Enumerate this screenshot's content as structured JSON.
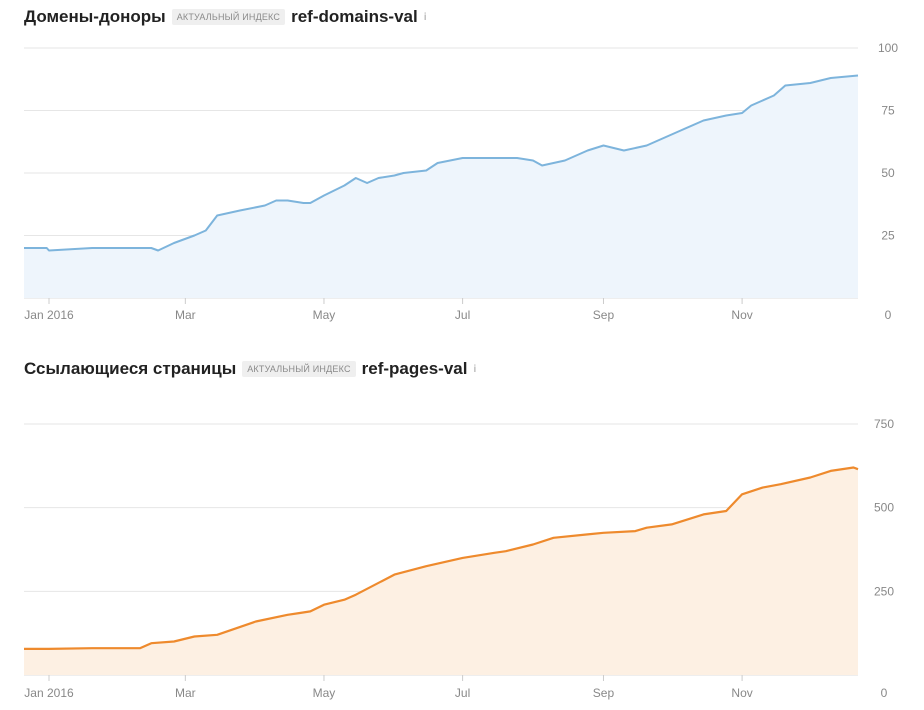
{
  "charts": [
    {
      "title": "Домены-доноры",
      "badge": "Актуальный индекс",
      "metric_key": "ref-domains-val",
      "info_icon": "i"
    },
    {
      "title": "Ссылающиеся страницы",
      "badge": "Актуальный индекс",
      "metric_key": "ref-pages-val",
      "info_icon": "i"
    }
  ],
  "colors": {
    "domains_line": "#7db4dc",
    "domains_fill": "#eef5fc",
    "pages_line": "#ee8a2d",
    "pages_fill": "#fdf0e3",
    "grid": "#e6e6e6",
    "tick_text": "#888888"
  },
  "chart_data": [
    {
      "type": "area",
      "title": "Домены-доноры",
      "x_tick_labels": [
        "Jan 2016",
        "Mar",
        "May",
        "Jul",
        "Sep",
        "Nov"
      ],
      "x_tick_dates": [
        "2016-01-01",
        "2016-03-01",
        "2016-05-01",
        "2016-07-01",
        "2016-09-01",
        "2016-11-01"
      ],
      "xlim": [
        "2015-12-21",
        "2016-12-22"
      ],
      "ylim": [
        0,
        100
      ],
      "y_ticks": [
        0,
        25,
        50,
        75,
        100
      ],
      "grid": true,
      "series": [
        {
          "x": [
            "2015-12-21",
            "2015-12-31",
            "2016-01-01",
            "2016-01-20",
            "2016-02-05",
            "2016-02-15",
            "2016-02-18",
            "2016-02-25",
            "2016-03-05",
            "2016-03-10",
            "2016-03-15",
            "2016-03-25",
            "2016-04-05",
            "2016-04-10",
            "2016-04-15",
            "2016-04-22",
            "2016-04-25",
            "2016-05-01",
            "2016-05-10",
            "2016-05-15",
            "2016-05-20",
            "2016-05-25",
            "2016-06-01",
            "2016-06-05",
            "2016-06-15",
            "2016-06-20",
            "2016-07-01",
            "2016-07-10",
            "2016-07-20",
            "2016-07-25",
            "2016-08-01",
            "2016-08-05",
            "2016-08-15",
            "2016-08-25",
            "2016-09-01",
            "2016-09-10",
            "2016-09-20",
            "2016-09-25",
            "2016-10-05",
            "2016-10-15",
            "2016-10-25",
            "2016-11-01",
            "2016-11-05",
            "2016-11-15",
            "2016-11-20",
            "2016-12-01",
            "2016-12-10",
            "2016-12-22"
          ],
          "y": [
            20,
            20,
            19,
            20,
            20,
            20,
            19,
            22,
            25,
            27,
            33,
            35,
            37,
            39,
            39,
            38,
            38,
            41,
            45,
            48,
            46,
            48,
            49,
            50,
            51,
            54,
            56,
            56,
            56,
            56,
            55,
            53,
            55,
            59,
            61,
            59,
            61,
            63,
            67,
            71,
            73,
            74,
            77,
            81,
            85,
            86,
            88,
            89
          ]
        }
      ]
    },
    {
      "type": "area",
      "title": "Ссылающиеся страницы",
      "x_tick_labels": [
        "Jan 2016",
        "Mar",
        "May",
        "Jul",
        "Sep",
        "Nov"
      ],
      "x_tick_dates": [
        "2016-01-01",
        "2016-03-01",
        "2016-05-01",
        "2016-07-01",
        "2016-09-01",
        "2016-11-01"
      ],
      "xlim": [
        "2015-12-21",
        "2016-12-22"
      ],
      "ylim": [
        0,
        750
      ],
      "y_ticks": [
        0,
        250,
        500,
        750
      ],
      "grid": true,
      "series": [
        {
          "x": [
            "2015-12-21",
            "2016-01-01",
            "2016-01-20",
            "2016-02-10",
            "2016-02-15",
            "2016-02-25",
            "2016-03-05",
            "2016-03-15",
            "2016-04-01",
            "2016-04-15",
            "2016-04-20",
            "2016-04-25",
            "2016-05-01",
            "2016-05-10",
            "2016-05-15",
            "2016-06-01",
            "2016-06-15",
            "2016-07-01",
            "2016-07-15",
            "2016-07-20",
            "2016-08-01",
            "2016-08-10",
            "2016-08-25",
            "2016-09-01",
            "2016-09-15",
            "2016-09-20",
            "2016-10-01",
            "2016-10-15",
            "2016-10-25",
            "2016-11-01",
            "2016-11-10",
            "2016-11-18",
            "2016-12-01",
            "2016-12-10",
            "2016-12-20",
            "2016-12-22"
          ],
          "y": [
            78,
            78,
            80,
            80,
            95,
            100,
            115,
            120,
            160,
            180,
            185,
            190,
            210,
            225,
            240,
            300,
            325,
            350,
            365,
            370,
            390,
            410,
            420,
            425,
            430,
            440,
            450,
            480,
            490,
            540,
            560,
            570,
            590,
            610,
            620,
            615
          ]
        }
      ]
    }
  ]
}
